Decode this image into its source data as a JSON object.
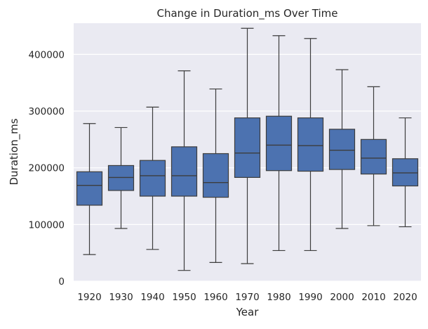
{
  "chart_data": {
    "type": "box",
    "title": "Change in Duration_ms Over Time",
    "xlabel": "Year",
    "ylabel": "Duration_ms",
    "ylim": [
      0,
      455000
    ],
    "yticks": [
      0,
      100000,
      200000,
      300000,
      400000
    ],
    "ytick_labels": [
      "0",
      "100000",
      "200000",
      "300000",
      "400000"
    ],
    "grid": true,
    "colors": {
      "background": "#EAEAF2",
      "box": "#4C72B0",
      "line": "#3D3D3D",
      "grid": "#FFFFFF"
    },
    "categories": [
      "1920",
      "1930",
      "1940",
      "1950",
      "1960",
      "1970",
      "1980",
      "1990",
      "2000",
      "2010",
      "2020"
    ],
    "boxes": [
      {
        "category": "1920",
        "whisker_low": 47000,
        "q1": 134000,
        "median": 169000,
        "q3": 193000,
        "whisker_high": 278000
      },
      {
        "category": "1930",
        "whisker_low": 93000,
        "q1": 160000,
        "median": 183000,
        "q3": 204000,
        "whisker_high": 271000
      },
      {
        "category": "1940",
        "whisker_low": 56000,
        "q1": 150000,
        "median": 186000,
        "q3": 213000,
        "whisker_high": 307000
      },
      {
        "category": "1950",
        "whisker_low": 19000,
        "q1": 150000,
        "median": 186000,
        "q3": 237000,
        "whisker_high": 371000
      },
      {
        "category": "1960",
        "whisker_low": 33000,
        "q1": 148000,
        "median": 174000,
        "q3": 225000,
        "whisker_high": 339000
      },
      {
        "category": "1970",
        "whisker_low": 31000,
        "q1": 183000,
        "median": 226000,
        "q3": 288000,
        "whisker_high": 446000
      },
      {
        "category": "1980",
        "whisker_low": 54000,
        "q1": 195000,
        "median": 240000,
        "q3": 291000,
        "whisker_high": 433000
      },
      {
        "category": "1990",
        "whisker_low": 54000,
        "q1": 194000,
        "median": 239000,
        "q3": 288000,
        "whisker_high": 428000
      },
      {
        "category": "2000",
        "whisker_low": 93000,
        "q1": 197000,
        "median": 231000,
        "q3": 268000,
        "whisker_high": 373000
      },
      {
        "category": "2010",
        "whisker_low": 98000,
        "q1": 189000,
        "median": 217000,
        "q3": 250000,
        "whisker_high": 343000
      },
      {
        "category": "2020",
        "whisker_low": 96000,
        "q1": 168000,
        "median": 191000,
        "q3": 216000,
        "whisker_high": 288000
      }
    ]
  }
}
